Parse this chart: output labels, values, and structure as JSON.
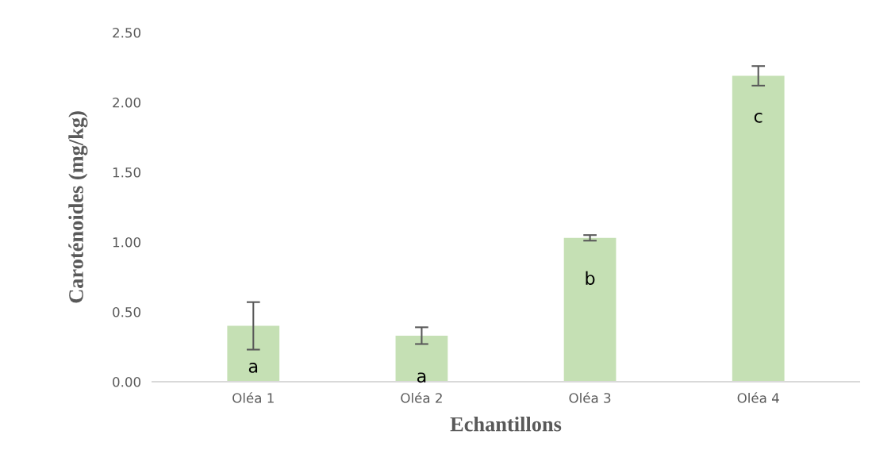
{
  "chart_data": {
    "type": "bar",
    "xlabel": "Echantillons",
    "ylabel": "Caroténoides (mg/kg)",
    "categories": [
      "Oléa 1",
      "Oléa 2",
      "Oléa 3",
      "Oléa 4"
    ],
    "values": [
      0.4,
      0.33,
      1.03,
      2.19
    ],
    "errors": [
      0.17,
      0.06,
      0.02,
      0.07
    ],
    "color": "#c5e0b4",
    "ylim": [
      0,
      2.5
    ],
    "yticks": [
      {
        "value": 0,
        "label": "0.00"
      },
      {
        "value": 0.5,
        "label": "0.50"
      },
      {
        "value": 1,
        "label": "1.00"
      },
      {
        "value": 1.5,
        "label": "1.50"
      },
      {
        "value": 2,
        "label": "2.00"
      },
      {
        "value": 2.5,
        "label": "2.50"
      }
    ],
    "grid": false,
    "legend": false,
    "value_labels": [
      "a",
      "a",
      "b",
      "c"
    ]
  }
}
